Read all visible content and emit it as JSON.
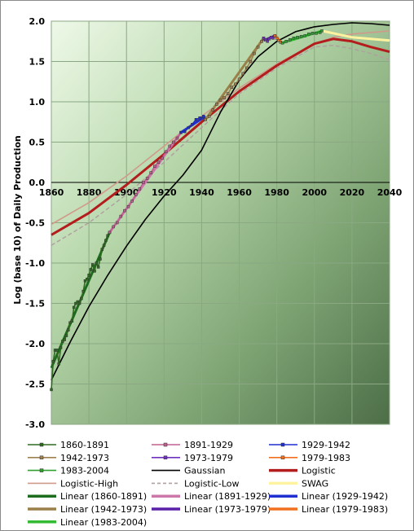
{
  "chart_data": {
    "type": "line",
    "title": "",
    "xlabel": "",
    "ylabel": "Log (base 10) of Daily Production",
    "xlim": [
      1860,
      2040
    ],
    "ylim": [
      -3.0,
      2.0
    ],
    "x_ticks": [
      "1860",
      "1880",
      "1900",
      "1920",
      "1940",
      "1960",
      "1980",
      "2000",
      "2020",
      "2040"
    ],
    "y_ticks": [
      "-3.0",
      "-2.5",
      "-2.0",
      "-1.5",
      "-1.0",
      "-0.5",
      "0.0",
      "0.5",
      "1.0",
      "1.5",
      "2.0"
    ],
    "grid": true,
    "legend_placement": "bottom",
    "series": [
      {
        "name": "1860-1891",
        "color": "#2e6b1f",
        "style": "markers",
        "x": [
          1860,
          1861,
          1862,
          1863,
          1864,
          1865,
          1866,
          1867,
          1868,
          1869,
          1870,
          1871,
          1872,
          1873,
          1874,
          1875,
          1876,
          1877,
          1878,
          1879,
          1880,
          1881,
          1882,
          1883,
          1884,
          1885,
          1886,
          1887,
          1888,
          1889,
          1890,
          1891
        ],
        "y": [
          -2.57,
          -2.22,
          -2.08,
          -2.08,
          -2.25,
          -2.05,
          -1.97,
          -1.95,
          -1.9,
          -1.83,
          -1.74,
          -1.72,
          -1.55,
          -1.5,
          -1.48,
          -1.5,
          -1.44,
          -1.35,
          -1.22,
          -1.2,
          -1.15,
          -1.08,
          -1.02,
          -1.1,
          -1.0,
          -1.05,
          -0.95,
          -0.83,
          -0.78,
          -0.72,
          -0.66,
          -0.62
        ]
      },
      {
        "name": "1891-1929",
        "color": "#c06090",
        "style": "markers",
        "x": [
          1891,
          1893,
          1895,
          1897,
          1899,
          1901,
          1903,
          1905,
          1907,
          1909,
          1911,
          1913,
          1915,
          1917,
          1919,
          1921,
          1923,
          1925,
          1927,
          1929
        ],
        "y": [
          -0.62,
          -0.55,
          -0.5,
          -0.42,
          -0.35,
          -0.3,
          -0.23,
          -0.15,
          -0.08,
          0.0,
          0.05,
          0.12,
          0.2,
          0.25,
          0.3,
          0.38,
          0.45,
          0.5,
          0.55,
          0.62
        ]
      },
      {
        "name": "1929-1942",
        "color": "#1f2fd0",
        "style": "markers",
        "x": [
          1929,
          1931,
          1933,
          1935,
          1937,
          1939,
          1941,
          1942
        ],
        "y": [
          0.62,
          0.63,
          0.68,
          0.72,
          0.78,
          0.8,
          0.82,
          0.78
        ]
      },
      {
        "name": "1942-1973",
        "color": "#a08050",
        "style": "markers",
        "x": [
          1942,
          1944,
          1946,
          1948,
          1950,
          1952,
          1954,
          1956,
          1958,
          1960,
          1962,
          1964,
          1966,
          1968,
          1970,
          1972,
          1973
        ],
        "y": [
          0.78,
          0.82,
          0.9,
          0.97,
          1.02,
          1.05,
          1.1,
          1.18,
          1.22,
          1.28,
          1.35,
          1.42,
          1.5,
          1.6,
          1.68,
          1.75,
          1.79
        ]
      },
      {
        "name": "1973-1979",
        "color": "#7030c0",
        "style": "markers",
        "x": [
          1973,
          1974,
          1975,
          1976,
          1977,
          1978,
          1979
        ],
        "y": [
          1.79,
          1.77,
          1.75,
          1.78,
          1.8,
          1.79,
          1.82
        ]
      },
      {
        "name": "1979-1983",
        "color": "#f07020",
        "style": "markers",
        "x": [
          1979,
          1980,
          1981,
          1982,
          1983
        ],
        "y": [
          1.82,
          1.79,
          1.76,
          1.74,
          1.73
        ]
      },
      {
        "name": "1983-2004",
        "color": "#30a030",
        "style": "markers",
        "x": [
          1983,
          1985,
          1987,
          1989,
          1991,
          1993,
          1995,
          1997,
          1999,
          2001,
          2003,
          2004
        ],
        "y": [
          1.73,
          1.75,
          1.77,
          1.79,
          1.8,
          1.81,
          1.82,
          1.84,
          1.85,
          1.85,
          1.86,
          1.88
        ]
      },
      {
        "name": "Gaussian",
        "color": "#000000",
        "style": "line",
        "x": [
          1860,
          1870,
          1880,
          1890,
          1900,
          1910,
          1920,
          1930,
          1940,
          1950,
          1960,
          1970,
          1980,
          1990,
          2000,
          2010,
          2020,
          2030,
          2040
        ],
        "y": [
          -2.45,
          -1.98,
          -1.54,
          -1.15,
          -0.79,
          -0.46,
          -0.17,
          0.09,
          0.4,
          0.87,
          1.27,
          1.56,
          1.75,
          1.87,
          1.93,
          1.96,
          1.98,
          1.97,
          1.95
        ]
      },
      {
        "name": "Logistic",
        "color": "#b31d1d",
        "style": "thick",
        "x": [
          1860,
          1880,
          1900,
          1920,
          1940,
          1960,
          1980,
          2000,
          2010,
          2020,
          2030,
          2040
        ],
        "y": [
          -0.65,
          -0.38,
          -0.03,
          0.35,
          0.75,
          1.13,
          1.45,
          1.72,
          1.78,
          1.75,
          1.68,
          1.62
        ]
      },
      {
        "name": "Logistic-High",
        "color": "#d09a8a",
        "style": "line",
        "x": [
          1860,
          1880,
          1900,
          1920,
          1940,
          1960,
          1980,
          2000,
          2010,
          2020,
          2030,
          2040
        ],
        "y": [
          -0.52,
          -0.25,
          0.08,
          0.45,
          0.82,
          1.17,
          1.47,
          1.72,
          1.8,
          1.84,
          1.86,
          1.88
        ]
      },
      {
        "name": "Logistic-Low",
        "color": "#b0a0a0",
        "style": "dashed",
        "x": [
          1860,
          1880,
          1900,
          1920,
          1940,
          1960,
          1980,
          2000,
          2010,
          2020,
          2030,
          2040
        ],
        "y": [
          -0.78,
          -0.5,
          -0.15,
          0.25,
          0.68,
          1.1,
          1.42,
          1.68,
          1.7,
          1.66,
          1.6,
          1.52
        ]
      },
      {
        "name": "SWAG",
        "color": "#fff3a0",
        "style": "thick",
        "x": [
          2004,
          2010,
          2020,
          2030,
          2040
        ],
        "y": [
          1.88,
          1.85,
          1.8,
          1.78,
          1.76
        ]
      },
      {
        "name": "Linear (1860-1891)",
        "color": "#1d6b1d",
        "style": "thick",
        "x": [
          1860,
          1891
        ],
        "y": [
          -2.3,
          -0.62
        ]
      },
      {
        "name": "Linear (1891-1929)",
        "color": "#cc77aa",
        "style": "thick",
        "x": [
          1891,
          1929
        ],
        "y": [
          -0.62,
          0.62
        ]
      },
      {
        "name": "Linear (1929-1942)",
        "color": "#1f2fd0",
        "style": "thick",
        "x": [
          1929,
          1942
        ],
        "y": [
          0.62,
          0.82
        ]
      },
      {
        "name": "Linear (1942-1973)",
        "color": "#9a8048",
        "style": "thick",
        "x": [
          1942,
          1973
        ],
        "y": [
          0.78,
          1.79
        ]
      },
      {
        "name": "Linear (1973-1979)",
        "color": "#5a20a8",
        "style": "thick",
        "x": [
          1973,
          1979
        ],
        "y": [
          1.76,
          1.82
        ]
      },
      {
        "name": "Linear (1979-1983)",
        "color": "#f07020",
        "style": "thick",
        "x": [
          1979,
          1983
        ],
        "y": [
          1.82,
          1.72
        ]
      },
      {
        "name": "Linear (1983-2004)",
        "color": "#33bb33",
        "style": "thick",
        "x": [
          1983,
          2004
        ],
        "y": [
          1.73,
          1.88
        ]
      }
    ]
  }
}
